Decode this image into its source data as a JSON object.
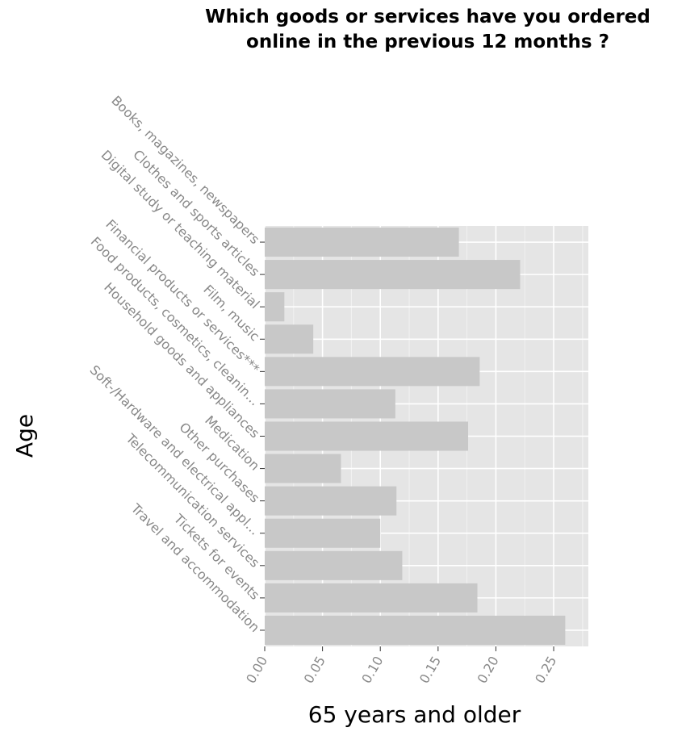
{
  "chart_data": {
    "type": "bar",
    "orientation": "horizontal",
    "title_lines": [
      "Which goods or services have you ordered",
      "online in the previous 12 months ?"
    ],
    "xlabel": "65 years and older",
    "ylabel": "Age",
    "xlim": [
      0,
      0.28
    ],
    "x_ticks": [
      "0.00",
      "0.05",
      "0.10",
      "0.15",
      "0.20",
      "0.25"
    ],
    "x_tick_values": [
      0,
      0.05,
      0.1,
      0.15,
      0.2,
      0.25
    ],
    "categories": [
      "Books, magazines, newspapers",
      "Clothes and sports articles",
      "Digital study or teaching material",
      "Film, music",
      "Financial products or services***",
      "Food products, cosmetics, cleanin…",
      "Household goods and appliances",
      "Medication",
      "Other purchases",
      "Soft-/Hardware and electrical appl…",
      "Telecommunication services",
      "Tickets for events",
      "Travel and accommodation"
    ],
    "values": [
      0.168,
      0.221,
      0.017,
      0.042,
      0.186,
      0.113,
      0.176,
      0.066,
      0.114,
      0.1,
      0.119,
      0.184,
      0.26
    ],
    "bar_color": "#c8c8c8",
    "panel_color": "#e5e5e5",
    "grid": true
  }
}
